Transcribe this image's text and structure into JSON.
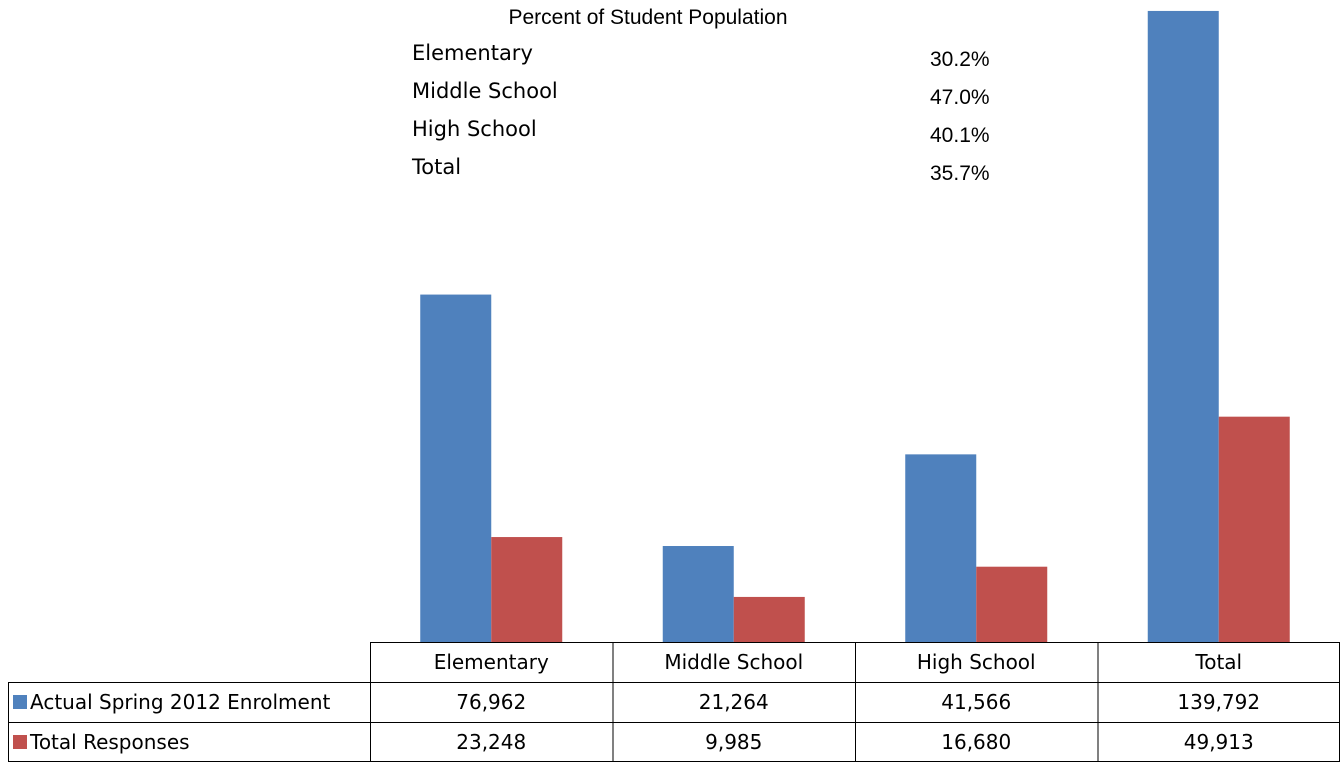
{
  "chart_data": {
    "type": "bar",
    "categories": [
      "Elementary",
      "Middle School",
      "High School",
      "Total"
    ],
    "series": [
      {
        "name": "Actual Spring 2012 Enrolment",
        "values": [
          76962,
          21264,
          41566,
          139792
        ],
        "labels": [
          "76,962",
          "21,264",
          "41,566",
          "139,792"
        ],
        "color": "#4F81BD"
      },
      {
        "name": "Total Responses",
        "values": [
          23248,
          9985,
          16680,
          49913
        ],
        "labels": [
          "23,248",
          "9,985",
          "16,680",
          "49,913"
        ],
        "color": "#C0504D"
      }
    ],
    "ylim": [
      0,
      140000
    ],
    "grid": false,
    "legend": "data-table",
    "annotation": {
      "heading": "Percent of Student Population",
      "rows": [
        {
          "label": "Elementary",
          "value": "30.2%"
        },
        {
          "label": "Middle School",
          "value": "47.0%"
        },
        {
          "label": "High School",
          "value": "40.1%"
        },
        {
          "label": "Total",
          "value": "35.7%"
        }
      ]
    }
  }
}
